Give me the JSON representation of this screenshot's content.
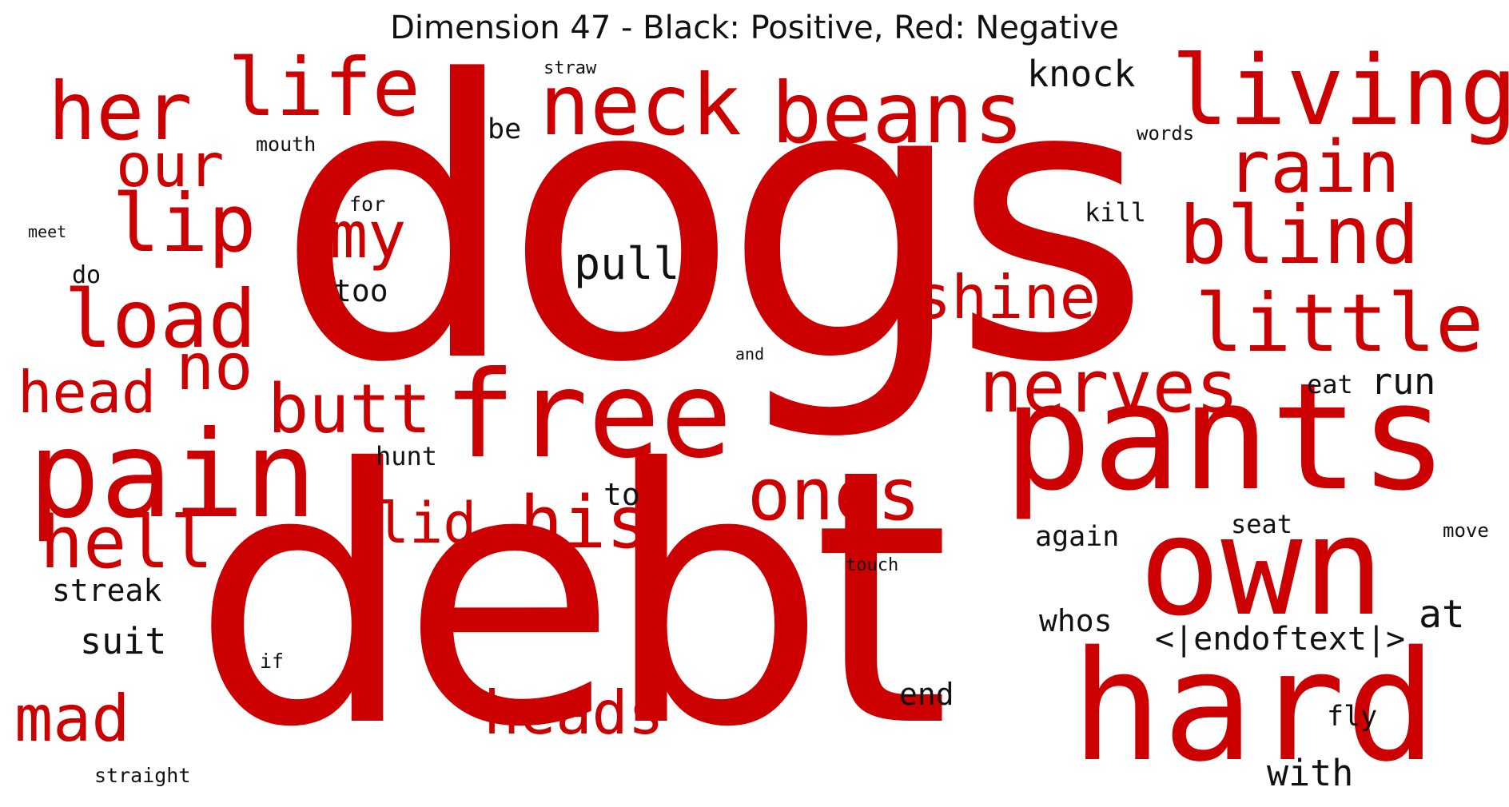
{
  "title": "Dimension 47 - Black: Positive, Red: Negative",
  "colors": {
    "positive": "#111111",
    "negative": "#cc0000"
  },
  "words": [
    {
      "text": "dogs",
      "polarity": "negative"
    },
    {
      "text": "debt",
      "polarity": "negative"
    },
    {
      "text": "pants",
      "polarity": "negative"
    },
    {
      "text": "hard",
      "polarity": "negative"
    },
    {
      "text": "own",
      "polarity": "negative"
    },
    {
      "text": "free",
      "polarity": "negative"
    },
    {
      "text": "pain",
      "polarity": "negative"
    },
    {
      "text": "living",
      "polarity": "negative"
    },
    {
      "text": "beans",
      "polarity": "negative"
    },
    {
      "text": "neck",
      "polarity": "negative"
    },
    {
      "text": "her",
      "polarity": "negative"
    },
    {
      "text": "life",
      "polarity": "negative"
    },
    {
      "text": "lip",
      "polarity": "negative"
    },
    {
      "text": "load",
      "polarity": "negative"
    },
    {
      "text": "blind",
      "polarity": "negative"
    },
    {
      "text": "little",
      "polarity": "negative"
    },
    {
      "text": "rain",
      "polarity": "negative"
    },
    {
      "text": "nerves",
      "polarity": "negative"
    },
    {
      "text": "ones",
      "polarity": "negative"
    },
    {
      "text": "his",
      "polarity": "negative"
    },
    {
      "text": "hell",
      "polarity": "negative"
    },
    {
      "text": "butt",
      "polarity": "negative"
    },
    {
      "text": "heads",
      "polarity": "negative"
    },
    {
      "text": "mad",
      "polarity": "negative"
    },
    {
      "text": "head",
      "polarity": "negative"
    },
    {
      "text": "no",
      "polarity": "negative"
    },
    {
      "text": "my",
      "polarity": "negative"
    },
    {
      "text": "our",
      "polarity": "negative"
    },
    {
      "text": "shine",
      "polarity": "negative"
    },
    {
      "text": "lid",
      "polarity": "negative"
    },
    {
      "text": "pull",
      "polarity": "positive"
    },
    {
      "text": "knock",
      "polarity": "positive"
    },
    {
      "text": "run",
      "polarity": "positive"
    },
    {
      "text": "at",
      "polarity": "positive"
    },
    {
      "text": "suit",
      "polarity": "positive"
    },
    {
      "text": "<|endoftext|>",
      "polarity": "positive"
    },
    {
      "text": "with",
      "polarity": "positive"
    },
    {
      "text": "streak",
      "polarity": "positive"
    },
    {
      "text": "whos",
      "polarity": "positive"
    },
    {
      "text": "again",
      "polarity": "positive"
    },
    {
      "text": "end",
      "polarity": "positive"
    },
    {
      "text": "too",
      "polarity": "positive"
    },
    {
      "text": "to",
      "polarity": "positive"
    },
    {
      "text": "fly",
      "polarity": "positive"
    },
    {
      "text": "hunt",
      "polarity": "positive"
    },
    {
      "text": "seat",
      "polarity": "positive"
    },
    {
      "text": "eat",
      "polarity": "positive"
    },
    {
      "text": "be",
      "polarity": "positive"
    },
    {
      "text": "kill",
      "polarity": "positive"
    },
    {
      "text": "do",
      "polarity": "positive"
    },
    {
      "text": "mouth",
      "polarity": "positive"
    },
    {
      "text": "for",
      "polarity": "positive"
    },
    {
      "text": "straight",
      "polarity": "positive"
    },
    {
      "text": "move",
      "polarity": "positive"
    },
    {
      "text": "touch",
      "polarity": "positive"
    },
    {
      "text": "words",
      "polarity": "positive"
    },
    {
      "text": "straw",
      "polarity": "positive"
    },
    {
      "text": "if",
      "polarity": "positive"
    },
    {
      "text": "and",
      "polarity": "positive"
    },
    {
      "text": "meet",
      "polarity": "positive"
    }
  ]
}
